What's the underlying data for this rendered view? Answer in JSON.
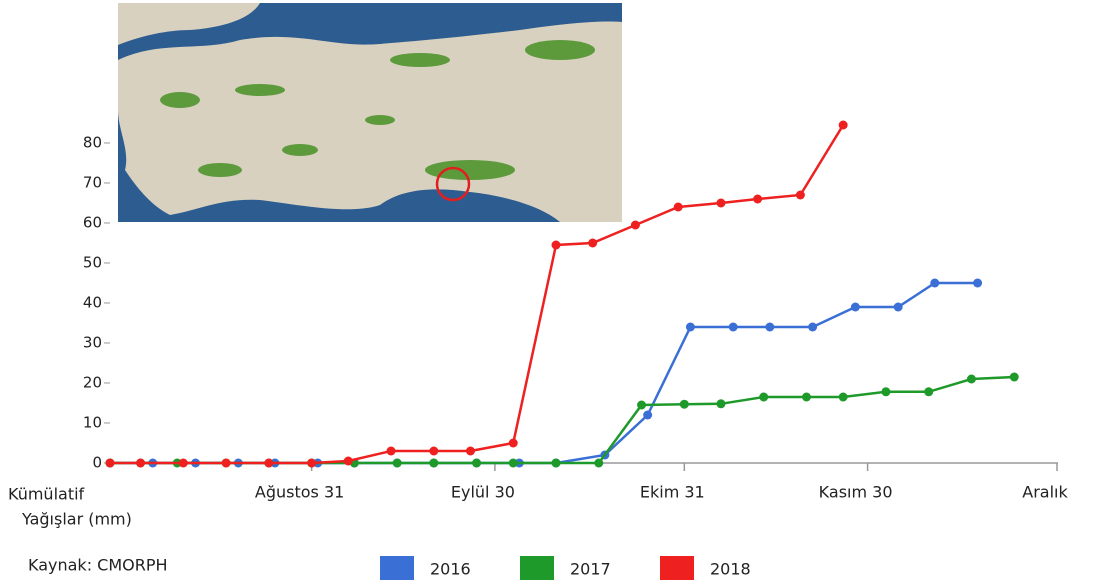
{
  "chart_data": {
    "type": "line",
    "ylabel": [
      "Kümülatif",
      "Yağışlar (mm)"
    ],
    "source": "Kaynak: CMORPH",
    "xlim": [
      210,
      365
    ],
    "xticks": [
      {
        "value": 243,
        "label": "Ağustos 31"
      },
      {
        "value": 273,
        "label": "Eylül 30"
      },
      {
        "value": 304,
        "label": "Ekim 31"
      },
      {
        "value": 334,
        "label": "Kasım 30"
      },
      {
        "value": 365,
        "label": "Aralık"
      }
    ],
    "ylim": [
      0,
      80
    ],
    "yticks": [
      0,
      10,
      20,
      30,
      40,
      50,
      60,
      70,
      80
    ],
    "series": [
      {
        "name": "2016",
        "color": "#3a6fd6",
        "x": [
          210,
          217,
          224,
          231,
          237,
          244,
          250,
          257,
          263,
          270,
          277,
          283,
          291,
          298,
          305,
          312,
          318,
          325,
          332,
          339,
          345,
          352
        ],
        "values": [
          0,
          0,
          0,
          0,
          0,
          0,
          0,
          0,
          0,
          0,
          0,
          0,
          2,
          12,
          34,
          34,
          34,
          34,
          39,
          39,
          45,
          45
        ]
      },
      {
        "name": "2017",
        "color": "#1e9a2a",
        "x": [
          210,
          215,
          221,
          229,
          236,
          243,
          250,
          257,
          263,
          270,
          276,
          283,
          290,
          297,
          304,
          310,
          317,
          324,
          330,
          337,
          344,
          351,
          358
        ],
        "values": [
          0,
          0,
          0,
          0,
          0,
          0,
          0,
          0,
          0,
          0,
          0,
          0,
          0,
          14.5,
          14.7,
          14.8,
          16.5,
          16.5,
          16.5,
          17.8,
          17.8,
          21,
          21.5
        ]
      },
      {
        "name": "2018",
        "color": "#ee2020",
        "x": [
          210,
          215,
          222,
          229,
          236,
          243,
          249,
          256,
          263,
          269,
          276,
          283,
          289,
          296,
          303,
          310,
          316,
          323,
          330
        ],
        "values": [
          0,
          0,
          0,
          0,
          0,
          0,
          0.5,
          3,
          3,
          3,
          5,
          54.5,
          55,
          59.5,
          64,
          65,
          66,
          67,
          84.5
        ]
      }
    ]
  }
}
